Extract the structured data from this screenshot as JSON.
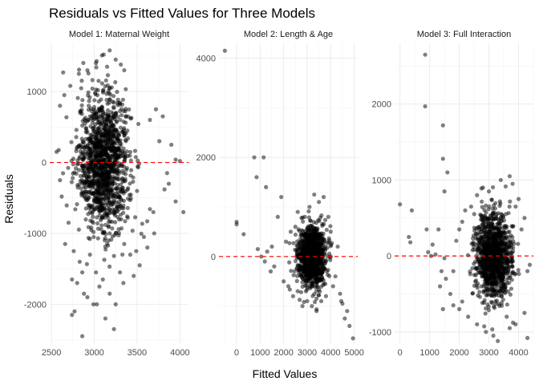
{
  "chart_data": {
    "type": "scatter",
    "title": "Residuals vs Fitted Values for Three Models",
    "xlabel": "Fitted Values",
    "ylabel": "Residuals",
    "reference_line": {
      "y": 0,
      "color": "#ff0000",
      "style": "dashed"
    },
    "point_color": "#000000",
    "grid": true,
    "panels": [
      {
        "name": "Model 1: Maternal Weight",
        "xlim": [
          2480,
          4100
        ],
        "ylim": [
          -2550,
          1680
        ],
        "xticks": [
          2500,
          3000,
          3500,
          4000
        ],
        "xtick_labels": [
          "2500",
          "3000",
          "3500",
          "4000"
        ],
        "yticks": [
          -2000,
          -1000,
          0,
          1000
        ],
        "ytick_labels": [
          "-2000",
          "-1000",
          "0",
          "1000"
        ],
        "cluster": {
          "cx": 3110,
          "sx": 150,
          "cy": 0,
          "sy": 480,
          "n": 1300
        },
        "points": [
          [
            3180,
            1580
          ],
          [
            3090,
            1510
          ],
          [
            3250,
            1450
          ],
          [
            3020,
            1400
          ],
          [
            3310,
            1380
          ],
          [
            3150,
            1350
          ],
          [
            2720,
            1080
          ],
          [
            2820,
            1250
          ],
          [
            2920,
            1300
          ],
          [
            3350,
            1300
          ],
          [
            2600,
            800
          ],
          [
            2650,
            950
          ],
          [
            3720,
            750
          ],
          [
            3800,
            650
          ],
          [
            3650,
            600
          ],
          [
            3900,
            250
          ],
          [
            4000,
            20
          ],
          [
            3850,
            -150
          ],
          [
            3950,
            -550
          ],
          [
            4040,
            -700
          ],
          [
            3820,
            -380
          ],
          [
            3580,
            -1050
          ],
          [
            3620,
            -1200
          ],
          [
            3700,
            -1000
          ],
          [
            2560,
            150
          ],
          [
            2600,
            -250
          ],
          [
            2620,
            -480
          ],
          [
            2700,
            -850
          ],
          [
            2660,
            -1150
          ],
          [
            2760,
            -1250
          ],
          [
            2740,
            -1650
          ],
          [
            2800,
            -1700
          ],
          [
            2860,
            -1550
          ],
          [
            2920,
            -1900
          ],
          [
            2990,
            -2000
          ],
          [
            2880,
            -1850
          ],
          [
            2770,
            -2100
          ],
          [
            2740,
            -2150
          ],
          [
            2860,
            -2450
          ],
          [
            3030,
            -2000
          ],
          [
            3020,
            -1550
          ],
          [
            3100,
            -1650
          ],
          [
            3230,
            -2350
          ],
          [
            3130,
            -2200
          ],
          [
            3340,
            -1700
          ],
          [
            3300,
            -1550
          ],
          [
            3420,
            -1300
          ],
          [
            3530,
            -1450
          ],
          [
            3460,
            -1600
          ],
          [
            3350,
            -1150
          ],
          [
            3490,
            -1250
          ],
          [
            3950,
            40
          ],
          [
            3760,
            300
          ],
          [
            3870,
            -300
          ],
          [
            3690,
            -700
          ],
          [
            3250,
            -2000
          ],
          [
            3180,
            -1850
          ],
          [
            3060,
            -1750
          ],
          [
            2950,
            -1300
          ],
          [
            2830,
            -1400
          ]
        ]
      },
      {
        "name": "Model 2: Length & Age",
        "xlim": [
          -750,
          5150
        ],
        "ylim": [
          -1750,
          4300
        ],
        "xticks": [
          0,
          1000,
          2000,
          3000,
          4000,
          5000
        ],
        "xtick_labels": [
          "0",
          "1000",
          "2000",
          "3000",
          "4000",
          "5000"
        ],
        "yticks": [
          0,
          2000,
          4000
        ],
        "ytick_labels": [
          "0",
          "2000",
          "4000"
        ],
        "cluster": {
          "cx": 3200,
          "sx": 290,
          "cy": 0,
          "sy": 290,
          "n": 1200
        },
        "points": [
          [
            -500,
            4150
          ],
          [
            750,
            2000
          ],
          [
            1150,
            2000
          ],
          [
            850,
            1600
          ],
          [
            1250,
            1400
          ],
          [
            0,
            650
          ],
          [
            0,
            700
          ],
          [
            300,
            450
          ],
          [
            1900,
            1200
          ],
          [
            1750,
            800
          ],
          [
            1500,
            200
          ],
          [
            1300,
            100
          ],
          [
            900,
            150
          ],
          [
            1050,
            0
          ],
          [
            1200,
            -100
          ],
          [
            1450,
            -300
          ],
          [
            1600,
            -200
          ],
          [
            2000,
            -500
          ],
          [
            2200,
            -600
          ],
          [
            2400,
            -800
          ],
          [
            2100,
            300
          ],
          [
            2300,
            500
          ],
          [
            2500,
            600
          ],
          [
            2600,
            900
          ],
          [
            3700,
            1200
          ],
          [
            3500,
            1100
          ],
          [
            3900,
            800
          ],
          [
            4000,
            500
          ],
          [
            4200,
            -400
          ],
          [
            4400,
            -750
          ],
          [
            4450,
            -900
          ],
          [
            4500,
            -950
          ],
          [
            4700,
            -1100
          ],
          [
            4950,
            -1650
          ],
          [
            4800,
            -1400
          ],
          [
            4600,
            -1250
          ],
          [
            3400,
            -1100
          ],
          [
            3200,
            -1000
          ],
          [
            3000,
            -900
          ],
          [
            2800,
            -1000
          ],
          [
            2600,
            -700
          ],
          [
            3600,
            -900
          ],
          [
            3800,
            -800
          ],
          [
            4100,
            -600
          ],
          [
            3300,
            1250
          ],
          [
            3100,
            1000
          ],
          [
            2900,
            800
          ],
          [
            4300,
            200
          ]
        ]
      },
      {
        "name": "Model 3: Full Interaction",
        "xlim": [
          -180,
          4500
        ],
        "ylim": [
          -1150,
          2800
        ],
        "xticks": [
          0,
          1000,
          2000,
          3000,
          4000
        ],
        "xtick_labels": [
          "0",
          "1000",
          "2000",
          "3000",
          "4000"
        ],
        "yticks": [
          -1000,
          0,
          1000,
          2000
        ],
        "ytick_labels": [
          "-1000",
          "0",
          "1000",
          "2000"
        ],
        "cluster": {
          "cx": 3150,
          "sx": 300,
          "cy": 0,
          "sy": 280,
          "n": 1200
        },
        "points": [
          [
            850,
            2650
          ],
          [
            850,
            1970
          ],
          [
            1450,
            1720
          ],
          [
            1450,
            1280
          ],
          [
            1600,
            1100
          ],
          [
            1500,
            850
          ],
          [
            0,
            680
          ],
          [
            400,
            600
          ],
          [
            900,
            350
          ],
          [
            300,
            250
          ],
          [
            350,
            180
          ],
          [
            1300,
            350
          ],
          [
            1100,
            150
          ],
          [
            950,
            50
          ],
          [
            1050,
            0
          ],
          [
            1200,
            20
          ],
          [
            1500,
            -30
          ],
          [
            1400,
            -200
          ],
          [
            1550,
            -300
          ],
          [
            1350,
            -400
          ],
          [
            1700,
            -500
          ],
          [
            1800,
            -200
          ],
          [
            1900,
            200
          ],
          [
            2000,
            350
          ],
          [
            2100,
            450
          ],
          [
            2200,
            600
          ],
          [
            2400,
            650
          ],
          [
            2600,
            800
          ],
          [
            2800,
            900
          ],
          [
            3000,
            850
          ],
          [
            3400,
            1000
          ],
          [
            3700,
            1050
          ],
          [
            3800,
            950
          ],
          [
            4000,
            750
          ],
          [
            4200,
            500
          ],
          [
            4300,
            -200
          ],
          [
            4200,
            -750
          ],
          [
            4300,
            -1080
          ],
          [
            3900,
            -900
          ],
          [
            3700,
            -950
          ],
          [
            3600,
            -800
          ],
          [
            3300,
            -1120
          ],
          [
            3150,
            -1050
          ],
          [
            2900,
            -1000
          ],
          [
            2600,
            -900
          ],
          [
            2300,
            -800
          ],
          [
            2000,
            -700
          ],
          [
            1800,
            -650
          ],
          [
            1450,
            -700
          ],
          [
            2100,
            -600
          ],
          [
            4100,
            350
          ],
          [
            3900,
            650
          ]
        ]
      }
    ]
  }
}
